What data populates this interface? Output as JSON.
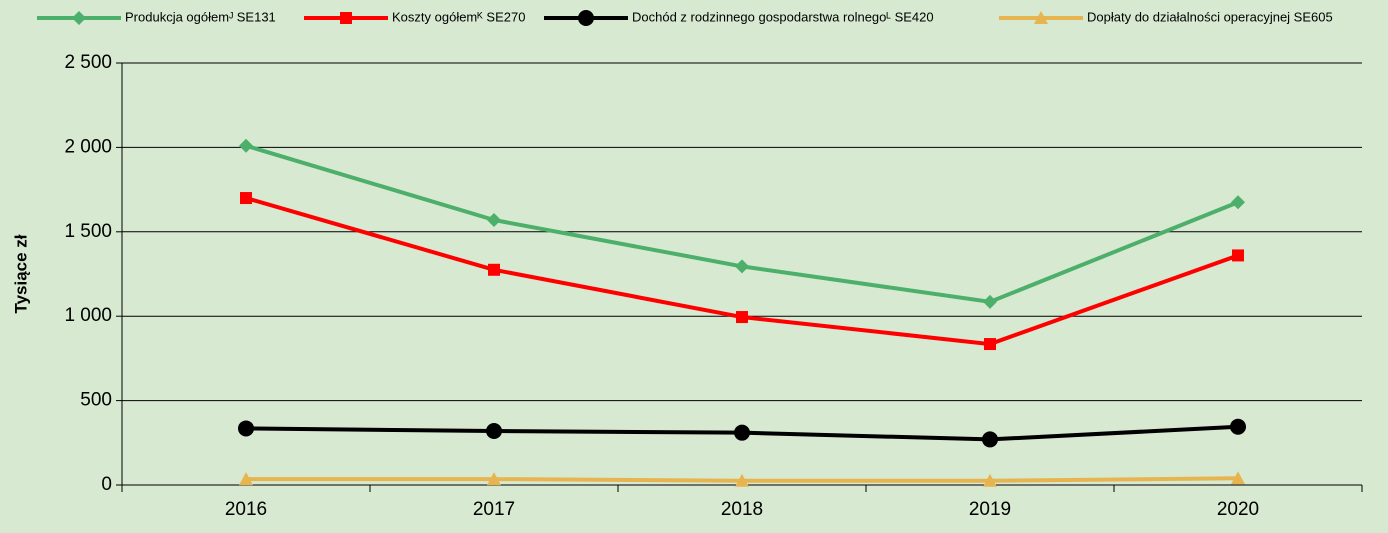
{
  "chart_data": {
    "type": "line",
    "y_label": "Tysiące zł",
    "categories": [
      "2016",
      "2017",
      "2018",
      "2019",
      "2020"
    ],
    "series": [
      {
        "name": "Produkcja ogółemᴶ SE131",
        "color": "#4caf6a",
        "marker": "diamond",
        "values": [
          2010,
          1570,
          1295,
          1085,
          1675
        ]
      },
      {
        "name": "Koszty ogółemᴷ SE270",
        "color": "#ff0000",
        "marker": "square",
        "values": [
          1700,
          1275,
          995,
          835,
          1360
        ]
      },
      {
        "name": "Dochód z rodzinnego gospodarstwa rolnegoᴸ SE420",
        "color": "#000000",
        "marker": "circle",
        "values": [
          335,
          320,
          310,
          270,
          345
        ]
      },
      {
        "name": "Dopłaty do działalności operacyjnej SE605",
        "color": "#e6b54f",
        "marker": "triangle",
        "values": [
          35,
          35,
          25,
          25,
          40
        ]
      }
    ],
    "ylim": [
      0,
      2500
    ],
    "yticks": [
      0,
      500,
      {
        "value": 1000,
        "label": "1 000"
      },
      {
        "value": 1500,
        "label": "1 500"
      },
      {
        "value": 2000,
        "label": "2 000"
      },
      {
        "value": 2500,
        "label": "2 500"
      }
    ],
    "grid": true,
    "legend": "top"
  }
}
